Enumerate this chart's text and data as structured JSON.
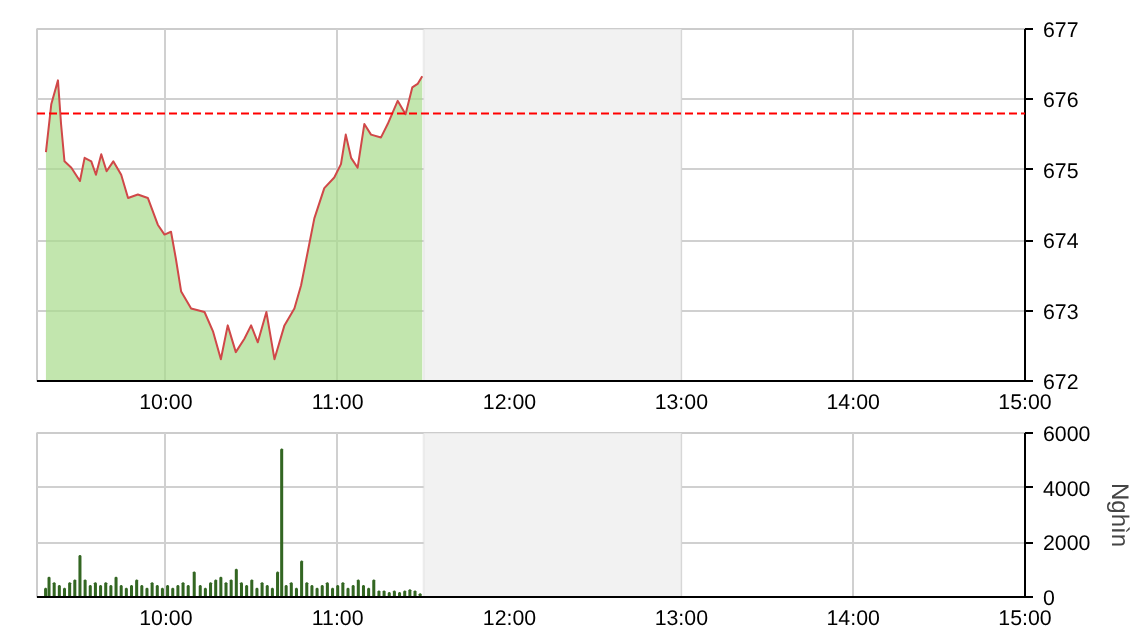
{
  "chart_data": [
    {
      "type": "area",
      "xlim": [
        9.25,
        15
      ],
      "ylim": [
        672,
        677
      ],
      "yticks": [
        672,
        673,
        674,
        675,
        676,
        677
      ],
      "xticks": [
        {
          "value": 10,
          "label": "10:00"
        },
        {
          "value": 11,
          "label": "11:00"
        },
        {
          "value": 12,
          "label": "12:00"
        },
        {
          "value": 13,
          "label": "13:00"
        },
        {
          "value": 14,
          "label": "14:00"
        },
        {
          "value": 15,
          "label": "15:00"
        }
      ],
      "grid": true,
      "bands": [
        {
          "axis": "x",
          "from": 11.5,
          "to": 13,
          "color": "#f2f2f2"
        }
      ],
      "ref_lines": [
        {
          "axis": "y",
          "value": 675.8,
          "color": "#ff0000",
          "line_style": "dashed"
        }
      ],
      "x": [
        9.302,
        9.333,
        9.372,
        9.39,
        9.41,
        9.45,
        9.5,
        9.527,
        9.566,
        9.593,
        9.624,
        9.655,
        9.694,
        9.74,
        9.78,
        9.837,
        9.895,
        9.953,
        9.992,
        10.03,
        10.058,
        10.089,
        10.147,
        10.225,
        10.275,
        10.32,
        10.36,
        10.407,
        10.457,
        10.496,
        10.535,
        10.585,
        10.632,
        10.69,
        10.748,
        10.787,
        10.826,
        10.864,
        10.922,
        10.98,
        11.019,
        11.047,
        11.078,
        11.116,
        11.155,
        11.194,
        11.252,
        11.291,
        11.349,
        11.395,
        11.434,
        11.465,
        11.492
      ],
      "series": [
        {
          "color": "#a8dc8c",
          "values": [
            675.25,
            675.93,
            676.27,
            675.65,
            675.12,
            675.03,
            674.84,
            675.17,
            675.12,
            674.93,
            675.22,
            674.98,
            675.12,
            674.93,
            674.6,
            674.65,
            674.6,
            674.22,
            674.08,
            674.12,
            673.74,
            673.27,
            673.03,
            672.98,
            672.7,
            672.31,
            672.79,
            672.41,
            672.6,
            672.79,
            672.55,
            672.98,
            672.31,
            672.79,
            673.03,
            673.36,
            673.84,
            674.31,
            674.74,
            674.89,
            675.08,
            675.5,
            675.17,
            675.03,
            675.65,
            675.5,
            675.46,
            675.65,
            675.98,
            675.79,
            676.17,
            676.22,
            676.33
          ]
        },
        {
          "type": "line",
          "color": "#d04848",
          "values": [
            675.25,
            675.93,
            676.27,
            675.65,
            675.12,
            675.03,
            674.84,
            675.17,
            675.12,
            674.93,
            675.22,
            674.98,
            675.12,
            674.93,
            674.6,
            674.65,
            674.6,
            674.22,
            674.08,
            674.12,
            673.74,
            673.27,
            673.03,
            672.98,
            672.7,
            672.31,
            672.79,
            672.41,
            672.6,
            672.79,
            672.55,
            672.98,
            672.31,
            672.79,
            673.03,
            673.36,
            673.84,
            674.31,
            674.74,
            674.89,
            675.08,
            675.5,
            675.17,
            675.03,
            675.65,
            675.5,
            675.46,
            675.65,
            675.98,
            675.79,
            676.17,
            676.22,
            676.33
          ]
        }
      ]
    },
    {
      "type": "bar",
      "xlim": [
        9.25,
        15
      ],
      "ylim": [
        0,
        6000
      ],
      "yticks": [
        0,
        2000,
        4000,
        6000
      ],
      "ylabel": "Nghìn",
      "xticks": [
        {
          "value": 10,
          "label": "10:00"
        },
        {
          "value": 11,
          "label": "11:00"
        },
        {
          "value": 12,
          "label": "12:00"
        },
        {
          "value": 13,
          "label": "13:00"
        },
        {
          "value": 14,
          "label": "14:00"
        },
        {
          "value": 15,
          "label": "15:00"
        }
      ],
      "grid": true,
      "bands": [
        {
          "axis": "x",
          "from": 11.5,
          "to": 13,
          "color": "#f2f2f2"
        }
      ],
      "x": [
        9.3,
        9.32,
        9.35,
        9.38,
        9.41,
        9.44,
        9.47,
        9.5,
        9.53,
        9.56,
        9.59,
        9.62,
        9.65,
        9.68,
        9.71,
        9.74,
        9.77,
        9.8,
        9.83,
        9.86,
        9.89,
        9.92,
        9.95,
        9.98,
        10.01,
        10.04,
        10.07,
        10.1,
        10.13,
        10.165,
        10.2,
        10.23,
        10.26,
        10.29,
        10.32,
        10.35,
        10.38,
        10.41,
        10.44,
        10.47,
        10.5,
        10.53,
        10.56,
        10.59,
        10.62,
        10.65,
        10.674,
        10.7,
        10.73,
        10.76,
        10.79,
        10.82,
        10.85,
        10.88,
        10.91,
        10.94,
        10.97,
        11.0,
        11.03,
        11.06,
        11.09,
        11.12,
        11.15,
        11.18,
        11.21,
        11.24,
        11.27,
        11.3,
        11.33,
        11.36,
        11.39,
        11.42,
        11.45,
        11.48
      ],
      "series": [
        {
          "color": "#336622",
          "values": [
            300,
            700,
            500,
            400,
            300,
            500,
            600,
            1500,
            600,
            400,
            500,
            400,
            500,
            400,
            700,
            400,
            300,
            400,
            600,
            400,
            300,
            500,
            400,
            300,
            400,
            300,
            400,
            500,
            400,
            900,
            400,
            300,
            500,
            600,
            700,
            500,
            600,
            1000,
            500,
            400,
            600,
            300,
            500,
            400,
            300,
            900,
            5400,
            400,
            500,
            300,
            1300,
            500,
            400,
            300,
            400,
            500,
            300,
            400,
            500,
            300,
            400,
            600,
            400,
            300,
            600,
            200,
            200,
            150,
            200,
            150,
            200,
            250,
            200,
            100
          ]
        }
      ]
    }
  ]
}
